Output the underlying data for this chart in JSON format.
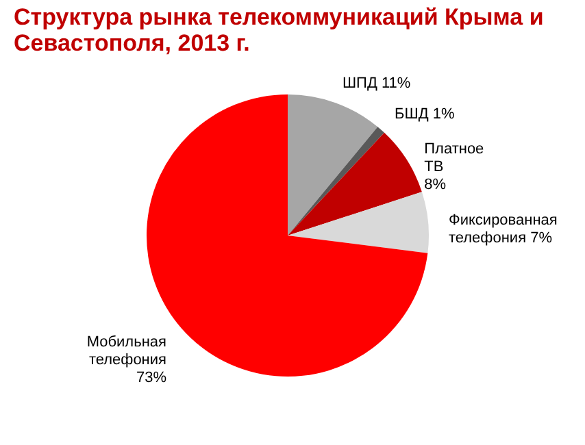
{
  "chart_data": {
    "type": "pie",
    "title": "Структура рынка телекоммуникаций Крыма и Севастополя, 2013 г.",
    "categories": [
      "ШПД",
      "БШД",
      "Платное ТВ",
      "Фиксированная телефония",
      "Мобильная телефония"
    ],
    "values": [
      11,
      1,
      8,
      7,
      73
    ],
    "value_labels": [
      "11%",
      "1%",
      "8%",
      "7%",
      "73%"
    ],
    "colors": [
      "#a6a6a6",
      "#595959",
      "#c00000",
      "#d9d9d9",
      "#ff0000"
    ],
    "legend": false
  }
}
